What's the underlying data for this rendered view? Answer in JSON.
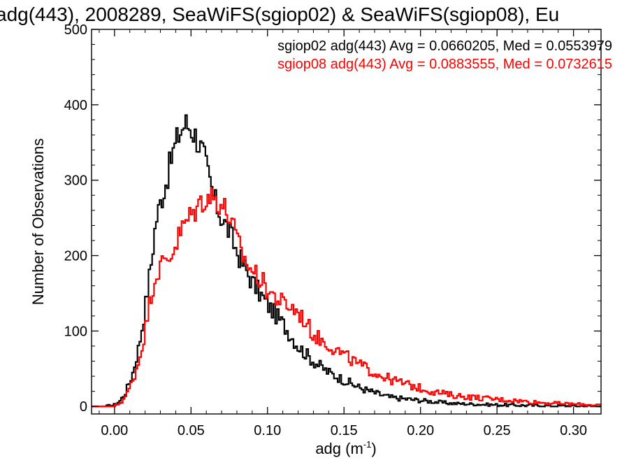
{
  "chart_data": {
    "type": "line",
    "title": "adg(443), 2008289, SeaWiFS(sgiop02) & SeaWiFS(sgiop08), Eu",
    "xlabel_main": "adg (m",
    "xlabel_sup": "-1",
    "xlabel_close": ")",
    "ylabel": "Number of Observations",
    "xlim": [
      -0.015,
      0.318
    ],
    "ylim": [
      -10,
      500
    ],
    "xticks": [
      0.0,
      0.05,
      0.1,
      0.15,
      0.2,
      0.25,
      0.3
    ],
    "xtick_labels": [
      "0.00",
      "0.05",
      "0.10",
      "0.15",
      "0.20",
      "0.25",
      "0.30"
    ],
    "yticks": [
      0,
      100,
      200,
      300,
      400,
      500
    ],
    "ytick_labels": [
      "0",
      "100",
      "200",
      "300",
      "400",
      "500"
    ],
    "grid": false,
    "legend_position": "top-right",
    "annotations": [
      {
        "text": "sgiop02 adg(443) Avg = 0.0660205, Med = 0.0553979",
        "color": "#000000"
      },
      {
        "text": "sgiop08 adg(443) Avg = 0.0883555, Med = 0.0732615",
        "color": "#ff0000"
      }
    ],
    "step_style": "histogram",
    "series": [
      {
        "name": "sgiop02",
        "color": "#000000",
        "points": [
          [
            -0.015,
            0
          ],
          [
            -0.005,
            0
          ],
          [
            0.0,
            2
          ],
          [
            0.004,
            8
          ],
          [
            0.008,
            22
          ],
          [
            0.012,
            45
          ],
          [
            0.016,
            80
          ],
          [
            0.02,
            130
          ],
          [
            0.024,
            190
          ],
          [
            0.027,
            245
          ],
          [
            0.03,
            270
          ],
          [
            0.034,
            300
          ],
          [
            0.038,
            335
          ],
          [
            0.042,
            360
          ],
          [
            0.046,
            375
          ],
          [
            0.05,
            370
          ],
          [
            0.054,
            355
          ],
          [
            0.058,
            335
          ],
          [
            0.062,
            300
          ],
          [
            0.066,
            270
          ],
          [
            0.07,
            250
          ],
          [
            0.075,
            232
          ],
          [
            0.08,
            205
          ],
          [
            0.085,
            185
          ],
          [
            0.09,
            165
          ],
          [
            0.1,
            135
          ],
          [
            0.11,
            110
          ],
          [
            0.12,
            80
          ],
          [
            0.13,
            60
          ],
          [
            0.14,
            45
          ],
          [
            0.15,
            35
          ],
          [
            0.16,
            25
          ],
          [
            0.17,
            18
          ],
          [
            0.18,
            12
          ],
          [
            0.2,
            8
          ],
          [
            0.22,
            4
          ],
          [
            0.25,
            2
          ],
          [
            0.28,
            1
          ],
          [
            0.318,
            0
          ]
        ]
      },
      {
        "name": "sgiop08",
        "color": "#ff0000",
        "points": [
          [
            -0.015,
            0
          ],
          [
            0.0,
            0
          ],
          [
            0.004,
            5
          ],
          [
            0.008,
            15
          ],
          [
            0.012,
            35
          ],
          [
            0.016,
            60
          ],
          [
            0.02,
            100
          ],
          [
            0.024,
            150
          ],
          [
            0.028,
            180
          ],
          [
            0.032,
            190
          ],
          [
            0.036,
            198
          ],
          [
            0.04,
            215
          ],
          [
            0.044,
            235
          ],
          [
            0.048,
            248
          ],
          [
            0.052,
            258
          ],
          [
            0.056,
            270
          ],
          [
            0.06,
            278
          ],
          [
            0.064,
            278
          ],
          [
            0.068,
            272
          ],
          [
            0.072,
            262
          ],
          [
            0.076,
            248
          ],
          [
            0.08,
            220
          ],
          [
            0.085,
            195
          ],
          [
            0.09,
            180
          ],
          [
            0.095,
            170
          ],
          [
            0.1,
            155
          ],
          [
            0.105,
            145
          ],
          [
            0.11,
            137
          ],
          [
            0.115,
            132
          ],
          [
            0.12,
            125
          ],
          [
            0.125,
            112
          ],
          [
            0.13,
            95
          ],
          [
            0.14,
            82
          ],
          [
            0.15,
            68
          ],
          [
            0.16,
            55
          ],
          [
            0.17,
            45
          ],
          [
            0.18,
            36
          ],
          [
            0.19,
            30
          ],
          [
            0.2,
            24
          ],
          [
            0.21,
            19
          ],
          [
            0.22,
            15
          ],
          [
            0.24,
            11
          ],
          [
            0.26,
            8
          ],
          [
            0.28,
            5
          ],
          [
            0.3,
            3
          ],
          [
            0.318,
            2
          ]
        ]
      }
    ]
  }
}
